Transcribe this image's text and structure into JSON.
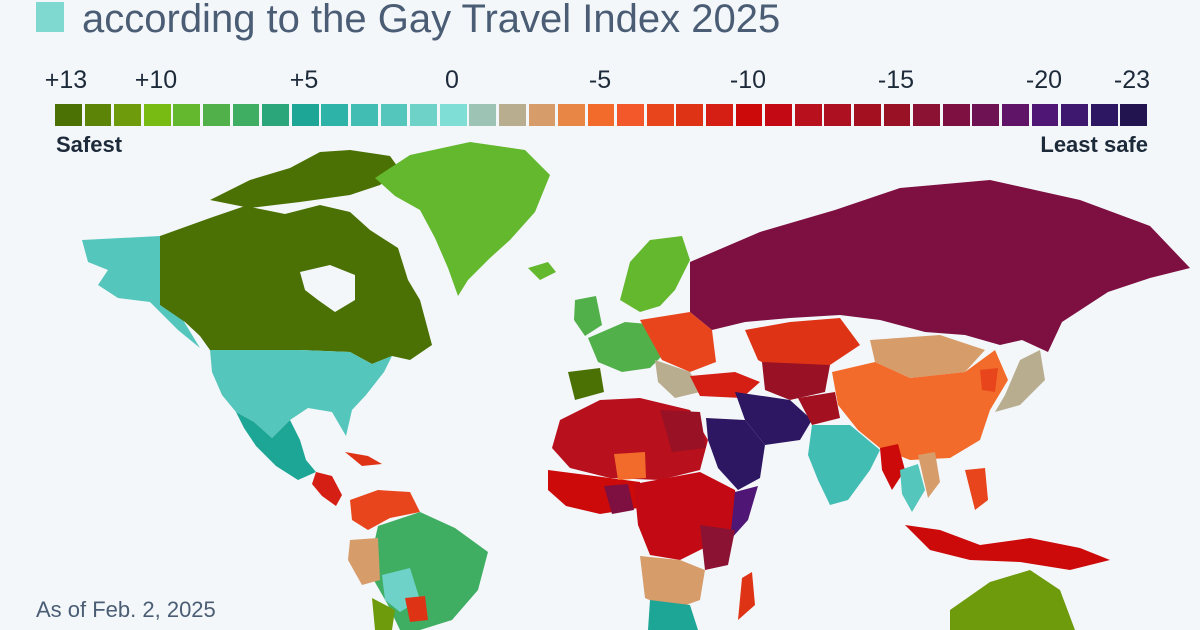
{
  "title": "according to the Gay Travel Index 2025",
  "legend": {
    "ticks": [
      "+13",
      "+10",
      "+5",
      "0",
      "-5",
      "-10",
      "-15",
      "-20",
      "-23"
    ],
    "colors": [
      "#4b7104",
      "#5c8508",
      "#6d9b0c",
      "#78bb12",
      "#63b82e",
      "#52b04a",
      "#3fae63",
      "#2aa67a",
      "#1da695",
      "#2db3a8",
      "#41bdb3",
      "#54c6bc",
      "#6fd2c8",
      "#7fded5",
      "#9cc3b3",
      "#b8ad8f",
      "#d69c6a",
      "#e88646",
      "#f36b2a",
      "#f2582a",
      "#e8451c",
      "#df3315",
      "#d51f14",
      "#cc0a0a",
      "#c30a14",
      "#b8101c",
      "#ad1020",
      "#a31020",
      "#981124",
      "#8b1232",
      "#7d1040",
      "#6e1254",
      "#5f1468",
      "#4f1675",
      "#3e176f",
      "#2d1762",
      "#22144f"
    ],
    "safest_label": "Safest",
    "least_safe_label": "Least safe"
  },
  "footnote": "As of Feb. 2, 2025"
}
